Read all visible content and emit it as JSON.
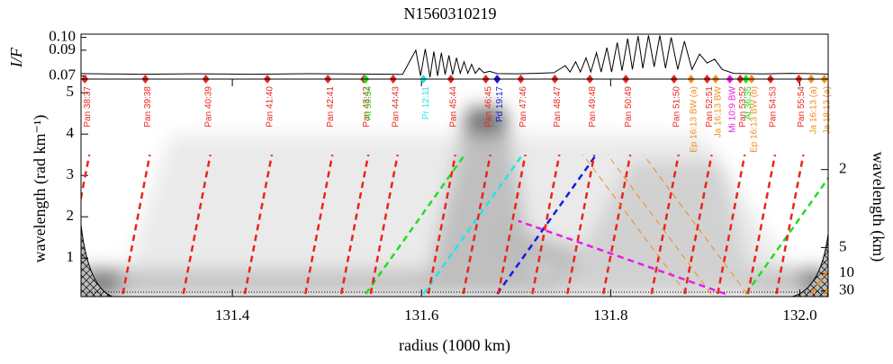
{
  "chart_data": {
    "type": "wavelet",
    "title": "N1560310219",
    "xlabel": "radius (1000 km)",
    "ylabel": "wavelength (rad km⁻¹)",
    "y2label": "wavelength (km)",
    "xlim": [
      131.24,
      132.03
    ],
    "xticks": [
      131.4,
      131.6,
      131.8,
      {
        "value": 132.0,
        "label": "132.0"
      }
    ],
    "ylim": [
      0.07,
      5.33
    ],
    "yticks": [
      1,
      2,
      3,
      4,
      5
    ],
    "y2_scale": "2pi-over",
    "y2ticks": [
      2,
      5,
      10,
      30
    ],
    "profile": {
      "ylabel": "I/F",
      "ylim": [
        0.0675,
        0.1025
      ],
      "yticks": [
        {
          "value": 0.1,
          "label": "0.10"
        },
        0.09,
        0.07
      ],
      "color": "#000000",
      "x": [
        131.24,
        131.3,
        131.36,
        131.42,
        131.48,
        131.54,
        131.58,
        131.594,
        131.599,
        131.604,
        131.609,
        131.613,
        131.617,
        131.621,
        131.625,
        131.629,
        131.633,
        131.637,
        131.641,
        131.645,
        131.649,
        131.653,
        131.657,
        131.661,
        131.666,
        131.672,
        131.68,
        131.7,
        131.72,
        131.74,
        131.752,
        131.757,
        131.763,
        131.768,
        131.774,
        131.779,
        131.785,
        131.79,
        131.796,
        131.801,
        131.807,
        131.812,
        131.818,
        131.823,
        131.829,
        131.834,
        131.84,
        131.846,
        131.852,
        131.858,
        131.864,
        131.871,
        131.878,
        131.886,
        131.894,
        131.902,
        131.91,
        131.918,
        131.93,
        131.96,
        131.99,
        132.03
      ],
      "values": [
        0.0718,
        0.0713,
        0.0716,
        0.0713,
        0.0717,
        0.0714,
        0.0712,
        0.09,
        0.07,
        0.091,
        0.069,
        0.089,
        0.07,
        0.088,
        0.071,
        0.086,
        0.071,
        0.084,
        0.072,
        0.081,
        0.072,
        0.079,
        0.072,
        0.076,
        0.0725,
        0.0735,
        0.0718,
        0.0716,
        0.072,
        0.0725,
        0.078,
        0.073,
        0.081,
        0.073,
        0.084,
        0.073,
        0.088,
        0.073,
        0.092,
        0.073,
        0.096,
        0.074,
        0.099,
        0.075,
        0.101,
        0.076,
        0.1015,
        0.077,
        0.1015,
        0.076,
        0.1,
        0.075,
        0.097,
        0.075,
        0.087,
        0.08,
        0.083,
        0.075,
        0.072,
        0.0715,
        0.072,
        0.0714
      ]
    },
    "resonances": [
      {
        "name": "Pan 38:37",
        "radius": 131.244,
        "color": "#e8261c"
      },
      {
        "name": "Pan 39:38",
        "radius": 131.308,
        "color": "#e8261c"
      },
      {
        "name": "Pan 40:39",
        "radius": 131.372,
        "color": "#e8261c"
      },
      {
        "name": "Pan 41:40",
        "radius": 131.437,
        "color": "#e8261c"
      },
      {
        "name": "Pan 42:41",
        "radius": 131.501,
        "color": "#e8261c"
      },
      {
        "name": "Pan 43:42",
        "radius": 131.539,
        "color": "#e8261c"
      },
      {
        "name": "At 35:34",
        "radius": 131.541,
        "color": "#22dd22"
      },
      {
        "name": "Pan 44:43",
        "radius": 131.57,
        "color": "#e8261c"
      },
      {
        "name": "Pr 12:11",
        "radius": 131.602,
        "color": "#22e5e5"
      },
      {
        "name": "Pan 45:44",
        "radius": 131.631,
        "color": "#e8261c"
      },
      {
        "name": "Pan 46:45",
        "radius": 131.668,
        "color": "#e8261c"
      },
      {
        "name": "Pd 19:17",
        "radius": 131.68,
        "color": "#1a1ae0"
      },
      {
        "name": "Pan 47:46",
        "radius": 131.705,
        "color": "#e8261c"
      },
      {
        "name": "Pan 48:47",
        "radius": 131.741,
        "color": "#e8261c"
      },
      {
        "name": "Pan 49:48",
        "radius": 131.778,
        "color": "#e8261c"
      },
      {
        "name": "Pan 50:49",
        "radius": 131.816,
        "color": "#e8261c"
      },
      {
        "name": "Pan 51:50",
        "radius": 131.867,
        "color": "#e8261c"
      },
      {
        "name": "Ep 16:13 BW (a)",
        "radius": 131.885,
        "color": "#f08c1c"
      },
      {
        "name": "Pan 52:51",
        "radius": 131.902,
        "color": "#e8261c"
      },
      {
        "name": "Ja 16:13 BW",
        "radius": 131.911,
        "color": "#f08c1c"
      },
      {
        "name": "Mi 10:9 BW",
        "radius": 131.926,
        "color": "#e81ce8"
      },
      {
        "name": "Pan 53:52",
        "radius": 131.937,
        "color": "#e8261c"
      },
      {
        "name": "At 36:35",
        "radius": 131.943,
        "color": "#22dd22"
      },
      {
        "name": "Ep 16:13 BW (b)",
        "radius": 131.949,
        "color": "#f08c1c"
      },
      {
        "name": "Pan 54:53",
        "radius": 131.969,
        "color": "#e8261c"
      },
      {
        "name": "Pan 55:54",
        "radius": 131.999,
        "color": "#e8261c"
      },
      {
        "name": "Ja 16:13 (a)",
        "radius": 132.012,
        "color": "#f08c1c"
      },
      {
        "name": "Ja 18:13 (a)",
        "radius": 132.026,
        "color": "#f08c1c"
      }
    ]
  }
}
